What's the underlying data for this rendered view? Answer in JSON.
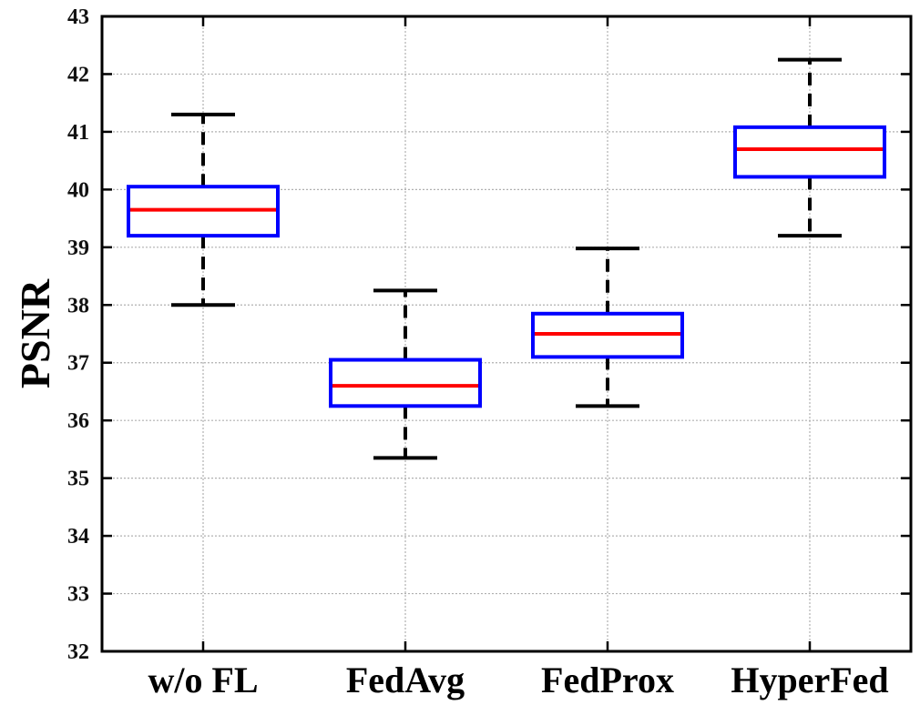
{
  "chart_data": {
    "type": "box",
    "title": "",
    "xlabel": "",
    "ylabel": "PSNR",
    "ylim": [
      32,
      43
    ],
    "yticks": [
      32,
      33,
      34,
      35,
      36,
      37,
      38,
      39,
      40,
      41,
      42,
      43
    ],
    "grid": true,
    "categories": [
      "w/o FL",
      "FedAvg",
      "FedProx",
      "HyperFed"
    ],
    "boxes": [
      {
        "category": "w/o FL",
        "whisker_low": 38.0,
        "q1": 39.2,
        "median": 39.65,
        "q3": 40.05,
        "whisker_high": 41.3
      },
      {
        "category": "FedAvg",
        "whisker_low": 35.35,
        "q1": 36.25,
        "median": 36.6,
        "q3": 37.05,
        "whisker_high": 38.25
      },
      {
        "category": "FedProx",
        "whisker_low": 36.25,
        "q1": 37.1,
        "median": 37.5,
        "q3": 37.85,
        "whisker_high": 38.98
      },
      {
        "category": "HyperFed",
        "whisker_low": 39.2,
        "q1": 40.22,
        "median": 40.7,
        "q3": 41.08,
        "whisker_high": 42.25
      }
    ],
    "colors": {
      "box": "#0000ff",
      "median": "#ff0000",
      "whisker": "#000000",
      "grid": "#b0b0b0"
    }
  }
}
